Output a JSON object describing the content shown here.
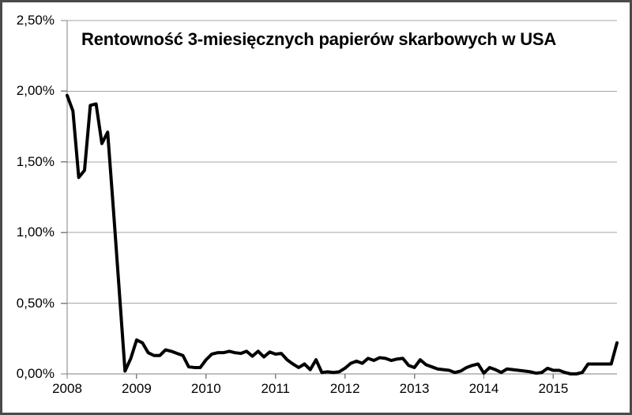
{
  "chart": {
    "title": "Rentowność 3-miesięcznych papierów skarbowych w USA"
  },
  "chart_data": {
    "type": "line",
    "title": "Rentowność 3-miesięcznych papierów skarbowych w USA",
    "xlabel": "",
    "ylabel": "",
    "ylim": [
      0,
      2.5
    ],
    "y_tick_step": 0.5,
    "y_ticks": [
      2.5,
      2.0,
      1.5,
      1.0,
      0.5,
      0.0
    ],
    "y_tick_labels": [
      "2,50%",
      "2,00%",
      "1,50%",
      "1,00%",
      "0,50%",
      "0,00%"
    ],
    "x_tick_labels": [
      "2008",
      "2009",
      "2010",
      "2011",
      "2012",
      "2013",
      "2014",
      "2015"
    ],
    "frequency": "monthly",
    "x_start": "2008-01",
    "x_end": "2015-12",
    "grid": "horizontal",
    "legend_position": "none",
    "line_color": "#000000",
    "gridline_color": "#a6a6a6",
    "axis_color": "#808080",
    "series": [
      {
        "name": "Rentowność 3-miesięcznych papierów skarbowych w USA",
        "values": [
          1.97,
          1.86,
          1.39,
          1.44,
          1.9,
          1.91,
          1.63,
          1.71,
          1.16,
          0.59,
          0.02,
          0.11,
          0.24,
          0.22,
          0.15,
          0.13,
          0.13,
          0.17,
          0.16,
          0.145,
          0.13,
          0.05,
          0.045,
          0.045,
          0.1,
          0.14,
          0.15,
          0.15,
          0.16,
          0.15,
          0.145,
          0.16,
          0.125,
          0.16,
          0.12,
          0.155,
          0.14,
          0.145,
          0.1,
          0.07,
          0.045,
          0.07,
          0.03,
          0.1,
          0.01,
          0.015,
          0.01,
          0.015,
          0.04,
          0.075,
          0.09,
          0.075,
          0.11,
          0.095,
          0.115,
          0.11,
          0.095,
          0.105,
          0.11,
          0.06,
          0.045,
          0.1,
          0.065,
          0.05,
          0.035,
          0.03,
          0.025,
          0.01,
          0.02,
          0.045,
          0.06,
          0.07,
          0.005,
          0.045,
          0.03,
          0.01,
          0.035,
          0.03,
          0.025,
          0.02,
          0.015,
          0.005,
          0.01,
          0.04,
          0.025,
          0.025,
          0.01,
          0.0,
          0.0,
          0.01,
          0.07,
          0.07,
          0.07,
          0.07,
          0.07,
          0.22
        ]
      }
    ]
  }
}
